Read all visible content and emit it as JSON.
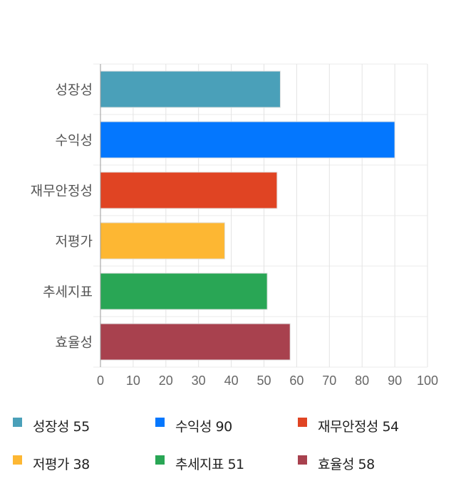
{
  "chart_data": {
    "type": "bar",
    "orientation": "horizontal",
    "categories": [
      "성장성",
      "수익성",
      "재무안정성",
      "저평가",
      "추세지표",
      "효율성"
    ],
    "values": [
      55,
      90,
      54,
      38,
      51,
      58
    ],
    "colors": [
      "#4aa0b9",
      "#0477fe",
      "#e04423",
      "#fdb733",
      "#29a655",
      "#a8414e"
    ],
    "xlim": [
      0,
      100
    ],
    "xticks": [
      "0",
      "10",
      "20",
      "30",
      "40",
      "50",
      "60",
      "70",
      "80",
      "90",
      "100"
    ],
    "grid": true,
    "legend": {
      "position": "bottom",
      "items": [
        "성장성 55",
        "수익성 90",
        "재무안정성 54",
        "저평가 38",
        "추세지표 51",
        "효율성 58"
      ]
    }
  }
}
